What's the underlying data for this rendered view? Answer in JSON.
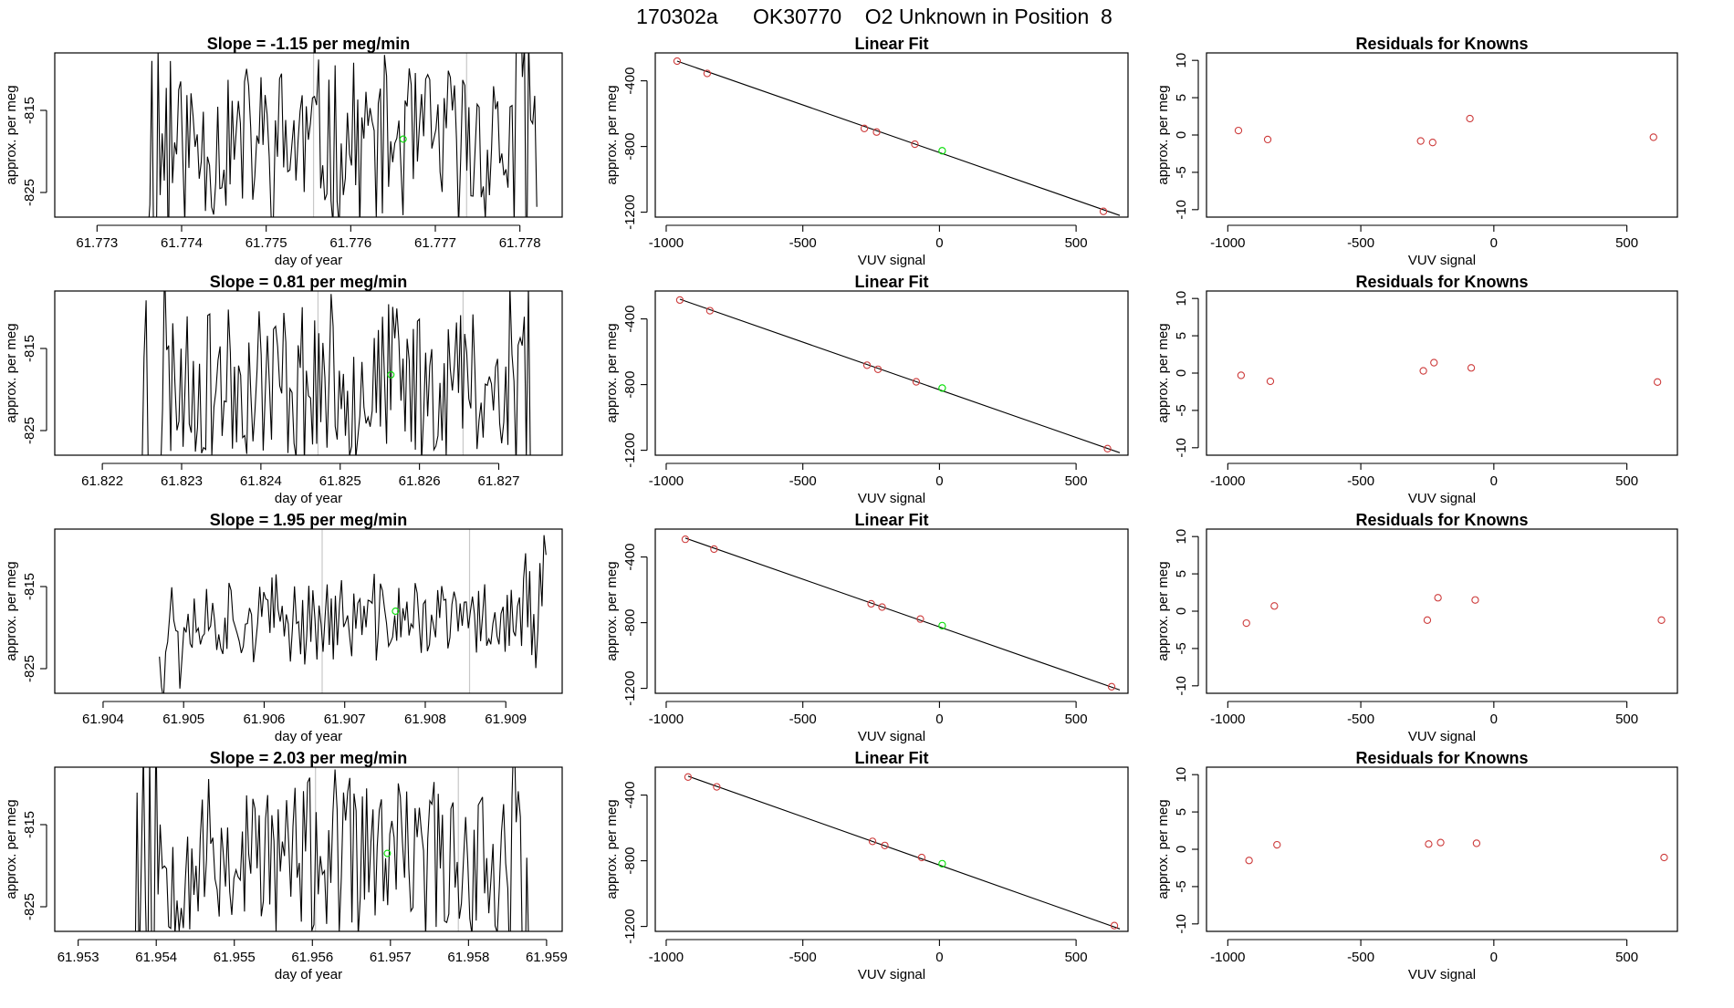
{
  "page_title": "170302a      OK30770    O2 Unknown in Position  8",
  "colors": {
    "trace": "#000000",
    "known": "#cd3b3b",
    "unknown": "#00dd00",
    "vline": "#c8c8c8",
    "frame": "#000000"
  },
  "labels": {
    "slope_prefix": "Slope = ",
    "slope_suffix": " per meg/min",
    "day_of_year": "day of year",
    "approx_per_meg": "approx. per meg",
    "vuv_signal": "VUV signal",
    "linear_fit": "Linear Fit",
    "residuals": "Residuals for Knowns"
  },
  "chart_data": [
    {
      "type": "line",
      "row": 0,
      "title": "Slope =  -1.15  per meg/min",
      "xlabel": "day of year",
      "ylabel": "approx. per meg",
      "xlim": [
        61.7725,
        61.7785
      ],
      "ylim": [
        -828,
        -808
      ],
      "xticks": [
        "61.773",
        "61.774",
        "61.775",
        "61.776",
        "61.777",
        "61.778"
      ],
      "xtick_values": [
        61.773,
        61.774,
        61.775,
        61.776,
        61.777,
        61.778
      ],
      "yticks": [
        "-815",
        "-825"
      ],
      "ytick_values": [
        -815,
        -825
      ],
      "trace_x_range": [
        61.7736,
        61.7782
      ],
      "vlines": [
        61.77556,
        61.77737
      ],
      "unknown_point": [
        61.77662,
        -818.5
      ],
      "slope": -1.15,
      "seed": 11
    },
    {
      "type": "scatter",
      "row": 0,
      "title": "Linear Fit",
      "xlabel": "VUV signal",
      "ylabel": "approx. per meg",
      "xlim": [
        -1040,
        690
      ],
      "ylim": [
        -1230,
        -230
      ],
      "xticks": [
        "-1000",
        "-500",
        "0",
        "500"
      ],
      "xtick_values": [
        -1000,
        -500,
        0,
        500
      ],
      "yticks": [
        "-400",
        "-800",
        "-1200"
      ],
      "ytick_values": [
        -400,
        -800,
        -1200
      ],
      "knowns": [
        [
          -960,
          -280
        ],
        [
          -850,
          -355
        ],
        [
          -275,
          -690
        ],
        [
          -230,
          -712
        ],
        [
          -90,
          -786
        ],
        [
          600,
          -1195
        ]
      ],
      "unknown": [
        [
          10,
          -826
        ]
      ],
      "fit_line": [
        [
          -960,
          -280
        ],
        [
          660,
          -1220
        ]
      ]
    },
    {
      "type": "scatter",
      "row": 0,
      "title": "Residuals for Knowns",
      "xlabel": "VUV signal",
      "ylabel": "approx. per meg",
      "xlim": [
        -1080,
        690
      ],
      "ylim": [
        -11,
        11
      ],
      "xticks": [
        "-1000",
        "-500",
        "0",
        "500"
      ],
      "xtick_values": [
        -1000,
        -500,
        0,
        500
      ],
      "yticks": [
        "10",
        "5",
        "0",
        "-5",
        "-10"
      ],
      "ytick_values": [
        10,
        5,
        0,
        -5,
        -10
      ],
      "knowns": [
        [
          -960,
          0.6
        ],
        [
          -850,
          -0.6
        ],
        [
          -275,
          -0.8
        ],
        [
          -230,
          -1.0
        ],
        [
          -90,
          2.2
        ],
        [
          600,
          -0.3
        ]
      ]
    },
    {
      "type": "line",
      "row": 1,
      "title": "Slope =  0.81  per meg/min",
      "xlabel": "day of year",
      "ylabel": "approx. per meg",
      "xlim": [
        61.8214,
        61.8278
      ],
      "ylim": [
        -828,
        -808
      ],
      "xticks": [
        "61.822",
        "61.823",
        "61.824",
        "61.825",
        "61.826",
        "61.827"
      ],
      "xtick_values": [
        61.822,
        61.823,
        61.824,
        61.825,
        61.826,
        61.827
      ],
      "yticks": [
        "-815",
        "-825"
      ],
      "ytick_values": [
        -815,
        -825
      ],
      "trace_x_range": [
        61.8225,
        61.8274
      ],
      "vlines": [
        61.82472,
        61.82655
      ],
      "unknown_point": [
        61.82564,
        -818.2
      ],
      "slope": 0.81,
      "seed": 23
    },
    {
      "type": "scatter",
      "row": 1,
      "title": "Linear Fit",
      "xlabel": "VUV signal",
      "ylabel": "approx. per meg",
      "xlim": [
        -1040,
        690
      ],
      "ylim": [
        -1230,
        -230
      ],
      "xticks": [
        "-1000",
        "-500",
        "0",
        "500"
      ],
      "xtick_values": [
        -1000,
        -500,
        0,
        500
      ],
      "yticks": [
        "-400",
        "-800",
        "-1200"
      ],
      "ytick_values": [
        -400,
        -800,
        -1200
      ],
      "knowns": [
        [
          -950,
          -285
        ],
        [
          -840,
          -350
        ],
        [
          -265,
          -682
        ],
        [
          -225,
          -707
        ],
        [
          -85,
          -783
        ],
        [
          615,
          -1190
        ]
      ],
      "unknown": [
        [
          10,
          -821
        ]
      ],
      "fit_line": [
        [
          -950,
          -280
        ],
        [
          660,
          -1215
        ]
      ]
    },
    {
      "type": "scatter",
      "row": 1,
      "title": "Residuals for Knowns",
      "xlabel": "VUV signal",
      "ylabel": "approx. per meg",
      "xlim": [
        -1080,
        690
      ],
      "ylim": [
        -11,
        11
      ],
      "xticks": [
        "-1000",
        "-500",
        "0",
        "500"
      ],
      "xtick_values": [
        -1000,
        -500,
        0,
        500
      ],
      "yticks": [
        "10",
        "5",
        "0",
        "-5",
        "-10"
      ],
      "ytick_values": [
        10,
        5,
        0,
        -5,
        -10
      ],
      "knowns": [
        [
          -950,
          -0.3
        ],
        [
          -840,
          -1.1
        ],
        [
          -265,
          0.3
        ],
        [
          -225,
          1.4
        ],
        [
          -85,
          0.7
        ],
        [
          615,
          -1.2
        ]
      ]
    },
    {
      "type": "line",
      "row": 2,
      "title": "Slope =  1.95  per meg/min",
      "xlabel": "day of year",
      "ylabel": "approx. per meg",
      "xlim": [
        61.9034,
        61.9097
      ],
      "ylim": [
        -828,
        -808
      ],
      "xticks": [
        "61.904",
        "61.905",
        "61.906",
        "61.907",
        "61.908",
        "61.909"
      ],
      "xtick_values": [
        61.904,
        61.905,
        61.906,
        61.907,
        61.908,
        61.909
      ],
      "yticks": [
        "-815",
        "-825"
      ],
      "ytick_values": [
        -815,
        -825
      ],
      "trace_x_range": [
        61.9047,
        61.9095
      ],
      "vlines": [
        61.90672,
        61.90855
      ],
      "unknown_point": [
        61.90763,
        -818.0
      ],
      "slope": 1.95,
      "seed": 37
    },
    {
      "type": "scatter",
      "row": 2,
      "title": "Linear Fit",
      "xlabel": "VUV signal",
      "ylabel": "approx. per meg",
      "xlim": [
        -1040,
        690
      ],
      "ylim": [
        -1230,
        -230
      ],
      "xticks": [
        "-1000",
        "-500",
        "0",
        "500"
      ],
      "xtick_values": [
        -1000,
        -500,
        0,
        500
      ],
      "yticks": [
        "-400",
        "-800",
        "-1200"
      ],
      "ytick_values": [
        -400,
        -800,
        -1200
      ],
      "knowns": [
        [
          -930,
          -292
        ],
        [
          -825,
          -352
        ],
        [
          -250,
          -685
        ],
        [
          -210,
          -705
        ],
        [
          -70,
          -778
        ],
        [
          630,
          -1190
        ]
      ],
      "unknown": [
        [
          10,
          -818
        ]
      ],
      "fit_line": [
        [
          -930,
          -285
        ],
        [
          660,
          -1210
        ]
      ]
    },
    {
      "type": "scatter",
      "row": 2,
      "title": "Residuals for Knowns",
      "xlabel": "VUV signal",
      "ylabel": "approx. per meg",
      "xlim": [
        -1080,
        690
      ],
      "ylim": [
        -11,
        11
      ],
      "xticks": [
        "-1000",
        "-500",
        "0",
        "500"
      ],
      "xtick_values": [
        -1000,
        -500,
        0,
        500
      ],
      "yticks": [
        "10",
        "5",
        "0",
        "-5",
        "-10"
      ],
      "ytick_values": [
        10,
        5,
        0,
        -5,
        -10
      ],
      "knowns": [
        [
          -930,
          -1.6
        ],
        [
          -825,
          0.7
        ],
        [
          -250,
          -1.2
        ],
        [
          -210,
          1.8
        ],
        [
          -70,
          1.5
        ],
        [
          630,
          -1.2
        ]
      ]
    },
    {
      "type": "line",
      "row": 3,
      "title": "Slope =  2.03  per meg/min",
      "xlabel": "day of year",
      "ylabel": "approx. per meg",
      "xlim": [
        61.9527,
        61.9592
      ],
      "ylim": [
        -828,
        -808
      ],
      "xticks": [
        "61.953",
        "61.954",
        "61.955",
        "61.956",
        "61.957",
        "61.958",
        "61.959"
      ],
      "xtick_values": [
        61.953,
        61.954,
        61.955,
        61.956,
        61.957,
        61.958,
        61.959
      ],
      "yticks": [
        "-815",
        "-825"
      ],
      "ytick_values": [
        -815,
        -825
      ],
      "trace_x_range": [
        61.9537,
        61.9588
      ],
      "vlines": [
        61.95604,
        61.95787
      ],
      "unknown_point": [
        61.95696,
        -818.5
      ],
      "slope": 2.03,
      "seed": 53
    },
    {
      "type": "scatter",
      "row": 3,
      "title": "Linear Fit",
      "xlabel": "VUV signal",
      "ylabel": "approx. per meg",
      "xlim": [
        -1040,
        690
      ],
      "ylim": [
        -1230,
        -230
      ],
      "xticks": [
        "-1000",
        "-500",
        "0",
        "500"
      ],
      "xtick_values": [
        -1000,
        -500,
        0,
        500
      ],
      "yticks": [
        "-400",
        "-800",
        "-1200"
      ],
      "ytick_values": [
        -400,
        -800,
        -1200
      ],
      "knowns": [
        [
          -920,
          -290
        ],
        [
          -815,
          -350
        ],
        [
          -245,
          -682
        ],
        [
          -200,
          -707
        ],
        [
          -65,
          -780
        ],
        [
          640,
          -1195
        ]
      ],
      "unknown": [
        [
          10,
          -818
        ]
      ],
      "fit_line": [
        [
          -920,
          -285
        ],
        [
          660,
          -1215
        ]
      ]
    },
    {
      "type": "scatter",
      "row": 3,
      "title": "Residuals for Knowns",
      "xlabel": "VUV signal",
      "ylabel": "approx. per meg",
      "xlim": [
        -1080,
        690
      ],
      "ylim": [
        -11,
        11
      ],
      "xticks": [
        "-1000",
        "-500",
        "0",
        "500"
      ],
      "xtick_values": [
        -1000,
        -500,
        0,
        500
      ],
      "yticks": [
        "10",
        "5",
        "0",
        "-5",
        "-10"
      ],
      "ytick_values": [
        10,
        5,
        0,
        -5,
        -10
      ],
      "knowns": [
        [
          -920,
          -1.5
        ],
        [
          -815,
          0.6
        ],
        [
          -245,
          0.7
        ],
        [
          -200,
          0.9
        ],
        [
          -65,
          0.8
        ],
        [
          640,
          -1.1
        ]
      ]
    }
  ]
}
